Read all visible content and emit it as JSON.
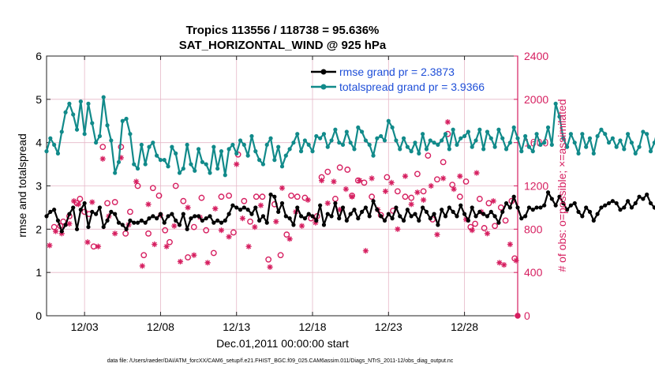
{
  "chart_data": {
    "type": "line",
    "title": "Tropics 113556 / 118738 = 95.636%",
    "subtitle": "SAT_HORIZONTAL_WIND @ 925 hPa",
    "xlabel": "Dec.01,2011 00:00:00 start",
    "ylabel_left": "rmse and totalspread",
    "ylabel_right": "# of obs: o=possible; ×=assimilated",
    "footer": "data file: /Users/raeder/DAI/ATM_forcXX/CAM6_setup/f.e21.FHIST_BGC.f09_025.CAM6assim.011/Diags_NTrS_2011-12/obs_diag_output.nc",
    "x_range_days": [
      0.5,
      31.5
    ],
    "x_tick_days": [
      3,
      8,
      13,
      18,
      23,
      28
    ],
    "x_tick_labels": [
      "12/03",
      "12/08",
      "12/13",
      "12/18",
      "12/23",
      "12/28"
    ],
    "ylim_left": [
      0,
      6
    ],
    "yticks_left": [
      "0",
      "1",
      "2",
      "3",
      "4",
      "5",
      "6"
    ],
    "ylim_right": [
      0,
      2400
    ],
    "yticks_right": [
      "0",
      "400",
      "800",
      "1200",
      "1600",
      "2000",
      "2400"
    ],
    "grid": true,
    "legend_position": "top-right",
    "colors": {
      "rmse": "#000000",
      "spread": "#118a8a",
      "obs": "#d61f60",
      "legend_text": "#1f4fd8",
      "grid": "#e6b8c8"
    },
    "series": [
      {
        "name": "rmse grand pr = 2.3873",
        "axis": "left",
        "x_start_day": 0.5,
        "step_days": 0.25,
        "values": [
          2.3,
          2.4,
          2.45,
          2.2,
          1.95,
          2.1,
          2.35,
          2.5,
          2.0,
          2.45,
          2.6,
          2.05,
          2.4,
          2.35,
          2.5,
          2.05,
          2.2,
          2.4,
          2.35,
          2.15,
          2.1,
          2.0,
          2.2,
          2.15,
          2.15,
          2.2,
          2.15,
          2.25,
          2.3,
          2.25,
          2.35,
          2.15,
          2.3,
          2.35,
          2.2,
          2.1,
          2.35,
          2.0,
          2.25,
          2.3,
          2.3,
          2.2,
          2.25,
          2.3,
          2.15,
          2.2,
          2.15,
          2.2,
          2.35,
          2.55,
          2.5,
          2.45,
          2.5,
          2.45,
          2.35,
          2.5,
          2.2,
          2.3,
          2.15,
          2.8,
          2.75,
          2.4,
          2.6,
          2.3,
          2.25,
          2.1,
          2.5,
          2.3,
          2.25,
          2.35,
          2.3,
          2.2,
          2.55,
          2.1,
          2.35,
          2.3,
          2.6,
          2.25,
          2.5,
          2.2,
          2.35,
          2.45,
          2.25,
          2.4,
          2.5,
          2.3,
          2.65,
          2.45,
          2.3,
          2.2,
          2.35,
          2.25,
          2.5,
          2.3,
          2.2,
          2.45,
          2.3,
          2.35,
          2.2,
          2.5,
          2.4,
          2.25,
          2.35,
          2.1,
          2.45,
          2.3,
          2.5,
          2.4,
          2.3,
          2.55,
          2.35,
          2.2,
          2.5,
          2.3,
          2.4,
          2.35,
          2.3,
          2.4,
          2.3,
          2.15,
          2.4,
          2.6,
          2.5,
          2.75,
          2.5,
          2.25,
          2.3,
          2.5,
          2.45,
          2.5,
          2.5,
          2.55,
          2.85,
          2.7,
          2.55,
          2.75,
          2.6,
          2.45,
          2.55,
          2.6,
          2.4,
          2.3,
          2.5,
          2.4,
          2.2,
          2.35,
          2.5,
          2.55,
          2.6,
          2.65,
          2.6,
          2.45,
          2.5,
          2.65,
          2.5,
          2.6,
          2.75,
          2.7,
          2.8,
          2.6,
          2.5,
          2.35,
          2.3,
          2.3
        ]
      },
      {
        "name": "totalspread grand pr = 3.9366",
        "axis": "left",
        "x_start_day": 0.5,
        "step_days": 0.25,
        "values": [
          3.8,
          4.1,
          3.95,
          3.75,
          4.25,
          4.7,
          4.9,
          4.65,
          4.3,
          4.95,
          4.2,
          4.9,
          4.45,
          4.0,
          4.15,
          5.05,
          4.4,
          4.05,
          3.3,
          3.55,
          4.5,
          4.55,
          4.2,
          3.5,
          3.4,
          3.95,
          3.5,
          3.9,
          4.0,
          3.7,
          3.6,
          3.6,
          3.45,
          3.9,
          3.75,
          3.3,
          3.4,
          3.95,
          3.5,
          3.35,
          3.85,
          3.55,
          3.5,
          3.3,
          3.9,
          3.4,
          3.8,
          3.25,
          3.85,
          3.95,
          3.75,
          4.05,
          3.95,
          3.7,
          4.15,
          3.8,
          3.6,
          3.5,
          3.95,
          4.1,
          3.6,
          3.9,
          3.45,
          3.7,
          3.85,
          4.0,
          4.2,
          3.8,
          4.05,
          3.95,
          3.8,
          4.15,
          4.1,
          4.2,
          3.9,
          4.05,
          4.3,
          4.0,
          3.95,
          4.25,
          4.0,
          3.85,
          4.35,
          4.25,
          4.05,
          3.95,
          3.7,
          4.1,
          4.15,
          4.05,
          4.5,
          4.35,
          4.05,
          3.85,
          4.1,
          3.9,
          3.8,
          4.0,
          3.75,
          4.2,
          3.85,
          4.05,
          4.0,
          3.95,
          4.05,
          4.2,
          3.85,
          4.3,
          3.95,
          4.1,
          4.15,
          4.25,
          3.9,
          4.05,
          4.3,
          3.85,
          4.25,
          4.1,
          3.9,
          4.3,
          4.1,
          3.85,
          4.0,
          4.35,
          4.1,
          3.8,
          4.15,
          3.9,
          3.8,
          4.2,
          3.95,
          4.0,
          4.35,
          3.95,
          4.9,
          4.6,
          4.1,
          3.9,
          4.2,
          4.0,
          3.75,
          4.2,
          3.9,
          4.1,
          3.75,
          4.15,
          4.3,
          4.2,
          4.0,
          4.1,
          3.9,
          4.05,
          3.85,
          4.2,
          4.0,
          3.75,
          3.9,
          4.25,
          4.2,
          3.8,
          4.0,
          4.35
        ]
      },
      {
        "name": "obs possible",
        "axis": "right",
        "marker": "circle",
        "points": [
          [
            1.0,
            820
          ],
          [
            1.4,
            830
          ],
          [
            1.6,
            870
          ],
          [
            2.0,
            920
          ],
          [
            2.5,
            1040
          ],
          [
            2.7,
            1080
          ],
          [
            3.0,
            960
          ],
          [
            3.3,
            940
          ],
          [
            3.6,
            640
          ],
          [
            4.2,
            1560
          ],
          [
            4.5,
            1040
          ],
          [
            5.0,
            1050
          ],
          [
            5.4,
            1560
          ],
          [
            5.7,
            760
          ],
          [
            6.0,
            960
          ],
          [
            6.5,
            1200
          ],
          [
            6.9,
            560
          ],
          [
            7.2,
            760
          ],
          [
            7.5,
            1180
          ],
          [
            7.9,
            1110
          ],
          [
            8.3,
            790
          ],
          [
            8.6,
            680
          ],
          [
            9.0,
            1200
          ],
          [
            9.5,
            1060
          ],
          [
            9.8,
            540
          ],
          [
            10.2,
            820
          ],
          [
            10.7,
            1090
          ],
          [
            11.0,
            790
          ],
          [
            11.5,
            580
          ],
          [
            12.0,
            1100
          ],
          [
            12.5,
            1110
          ],
          [
            12.8,
            770
          ],
          [
            13.1,
            1490
          ],
          [
            13.5,
            1060
          ],
          [
            13.9,
            870
          ],
          [
            14.3,
            1100
          ],
          [
            14.7,
            1100
          ],
          [
            15.1,
            520
          ],
          [
            15.5,
            1030
          ],
          [
            15.9,
            560
          ],
          [
            16.3,
            750
          ],
          [
            16.6,
            1110
          ],
          [
            17.0,
            1100
          ],
          [
            17.5,
            1090
          ],
          [
            17.9,
            900
          ],
          [
            18.3,
            920
          ],
          [
            18.6,
            1280
          ],
          [
            19.0,
            1330
          ],
          [
            19.5,
            1080
          ],
          [
            19.8,
            1370
          ],
          [
            20.3,
            1350
          ],
          [
            20.6,
            1110
          ],
          [
            21.0,
            1250
          ],
          [
            21.4,
            1230
          ],
          [
            21.9,
            1100
          ],
          [
            22.5,
            930
          ],
          [
            22.9,
            1280
          ],
          [
            23.3,
            970
          ],
          [
            23.6,
            1150
          ],
          [
            24.1,
            1100
          ],
          [
            24.5,
            1090
          ],
          [
            24.9,
            1310
          ],
          [
            25.3,
            1150
          ],
          [
            25.6,
            1480
          ],
          [
            25.9,
            890
          ],
          [
            26.2,
            1260
          ],
          [
            26.6,
            1420
          ],
          [
            26.9,
            1680
          ],
          [
            27.2,
            1210
          ],
          [
            27.7,
            1100
          ],
          [
            28.1,
            1240
          ],
          [
            28.4,
            820
          ],
          [
            28.7,
            850
          ],
          [
            29.0,
            1080
          ],
          [
            29.3,
            810
          ],
          [
            29.6,
            1040
          ],
          [
            30.0,
            830
          ],
          [
            30.4,
            1000
          ],
          [
            30.7,
            880
          ],
          [
            31.1,
            1060
          ],
          [
            31.3,
            530
          ]
        ]
      },
      {
        "name": "obs assimilated",
        "axis": "right",
        "marker": "asterisk",
        "points": [
          [
            0.7,
            650
          ],
          [
            1.1,
            780
          ],
          [
            1.5,
            760
          ],
          [
            2.0,
            850
          ],
          [
            2.3,
            1060
          ],
          [
            2.6,
            1030
          ],
          [
            3.2,
            680
          ],
          [
            3.5,
            1050
          ],
          [
            3.9,
            640
          ],
          [
            4.2,
            1450
          ],
          [
            4.6,
            920
          ],
          [
            5.0,
            760
          ],
          [
            5.4,
            1460
          ],
          [
            5.9,
            840
          ],
          [
            6.4,
            1240
          ],
          [
            6.8,
            460
          ],
          [
            7.2,
            1030
          ],
          [
            7.6,
            660
          ],
          [
            8.0,
            930
          ],
          [
            8.4,
            640
          ],
          [
            8.9,
            830
          ],
          [
            9.3,
            500
          ],
          [
            9.8,
            1000
          ],
          [
            10.2,
            560
          ],
          [
            10.6,
            910
          ],
          [
            11.1,
            490
          ],
          [
            11.6,
            990
          ],
          [
            12.0,
            790
          ],
          [
            12.5,
            730
          ],
          [
            13.0,
            1400
          ],
          [
            13.4,
            900
          ],
          [
            13.8,
            640
          ],
          [
            14.2,
            820
          ],
          [
            14.6,
            1020
          ],
          [
            15.2,
            450
          ],
          [
            15.6,
            870
          ],
          [
            16.0,
            1180
          ],
          [
            16.5,
            710
          ],
          [
            16.9,
            960
          ],
          [
            17.3,
            830
          ],
          [
            17.7,
            1070
          ],
          [
            18.2,
            860
          ],
          [
            18.6,
            1250
          ],
          [
            19.0,
            1040
          ],
          [
            19.4,
            1240
          ],
          [
            19.8,
            980
          ],
          [
            20.2,
            1170
          ],
          [
            20.6,
            1100
          ],
          [
            21.1,
            1250
          ],
          [
            21.5,
            600
          ],
          [
            21.9,
            1270
          ],
          [
            22.3,
            980
          ],
          [
            22.8,
            1150
          ],
          [
            23.2,
            1230
          ],
          [
            23.6,
            800
          ],
          [
            24.1,
            1290
          ],
          [
            24.5,
            1030
          ],
          [
            24.9,
            1140
          ],
          [
            25.3,
            1070
          ],
          [
            25.8,
            1200
          ],
          [
            26.2,
            750
          ],
          [
            26.6,
            1270
          ],
          [
            26.9,
            1790
          ],
          [
            27.3,
            1170
          ],
          [
            27.7,
            1290
          ],
          [
            28.1,
            890
          ],
          [
            28.5,
            790
          ],
          [
            28.8,
            1320
          ],
          [
            29.1,
            960
          ],
          [
            29.5,
            760
          ],
          [
            29.9,
            1060
          ],
          [
            30.3,
            490
          ],
          [
            30.6,
            470
          ],
          [
            31.0,
            660
          ],
          [
            31.4,
            510
          ]
        ]
      }
    ]
  }
}
